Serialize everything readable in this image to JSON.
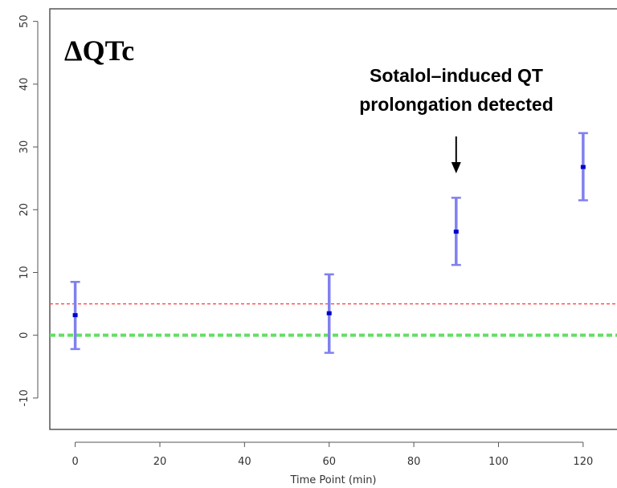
{
  "chart_data": {
    "type": "scatter",
    "title": "ΔQTc",
    "xlabel": "Time Point (min)",
    "ylabel": "",
    "xlim": [
      -6,
      128
    ],
    "ylim": [
      -15,
      52
    ],
    "xticks": [
      0,
      20,
      40,
      60,
      80,
      100,
      120
    ],
    "yticks": [
      -10,
      0,
      10,
      20,
      30,
      40,
      50
    ],
    "series": [
      {
        "x": [
          0,
          60,
          90,
          120
        ],
        "y": [
          3.2,
          3.5,
          16.5,
          26.8
        ],
        "lower": [
          -2.2,
          -2.8,
          11.2,
          21.5
        ],
        "upper": [
          8.5,
          9.7,
          21.9,
          32.2
        ],
        "color": "#0000cc",
        "error_bar_color": "#8080f0"
      }
    ],
    "reference_lines": [
      {
        "y": 5,
        "color": "#ff4444",
        "style": "dashed"
      },
      {
        "y": 0,
        "color": "#66dd66",
        "style": "dashed"
      }
    ],
    "annotations": [
      {
        "lines": [
          "Sotalol–induced QT",
          "prolongation detected"
        ],
        "x": 90
      }
    ],
    "grid": false,
    "legend": "none"
  }
}
